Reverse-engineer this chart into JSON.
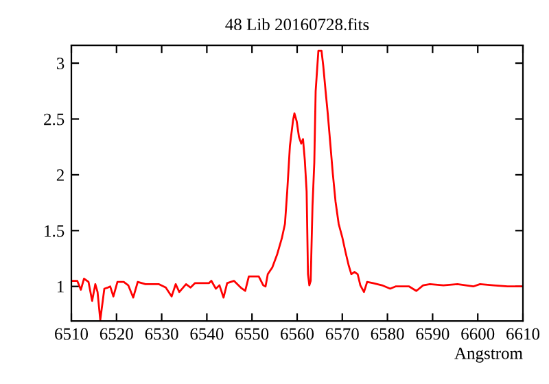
{
  "chart_data": {
    "type": "line",
    "title": "48 Lib 20160728.fits",
    "xlabel": "Angstrom",
    "xlim": [
      6510,
      6610
    ],
    "xticks": [
      6510,
      6520,
      6530,
      6540,
      6550,
      6560,
      6570,
      6580,
      6590,
      6600,
      6610
    ],
    "ylim": [
      0.69,
      3.16
    ],
    "yticks": [
      1,
      1.5,
      2,
      2.5,
      3
    ],
    "grid": false,
    "legend": false,
    "marker": "none",
    "line_style": "solid",
    "series": [
      {
        "color": "#ff0000",
        "x": [
          6510.3,
          6511.3,
          6512.1,
          6512.8,
          6513.8,
          6514.6,
          6515.3,
          6515.8,
          6516.4,
          6517.3,
          6518.1,
          6518.6,
          6519.3,
          6520.2,
          6521.6,
          6522.6,
          6523.7,
          6524.7,
          6526.4,
          6529.4,
          6530.9,
          6532.2,
          6533.1,
          6533.9,
          6535.4,
          6536.4,
          6537.4,
          6540.5,
          6541.0,
          6542.0,
          6542.8,
          6543.7,
          6544.5,
          6546.0,
          6547.5,
          6548.5,
          6549.3,
          6550.0,
          6551.5,
          6552.5,
          6553.0,
          6553.5,
          6554.5,
          6555.6,
          6556.6,
          6557.3,
          6557.8,
          6558.4,
          6559.1,
          6559.4,
          6559.9,
          6560.4,
          6560.9,
          6561.3,
          6561.7,
          6562.1,
          6562.4,
          6562.7,
          6563.0,
          6563.4,
          6563.8,
          6564.1,
          6564.7,
          6565.4,
          6565.8,
          6566.3,
          6566.8,
          6567.3,
          6567.9,
          6568.5,
          6569.2,
          6570.0,
          6570.7,
          6571.4,
          6572.0,
          6572.7,
          6573.4,
          6574.0,
          6574.8,
          6575.5,
          6576.8,
          6578.8,
          6580.6,
          6581.8,
          6583.3,
          6584.8,
          6586.4,
          6587.9,
          6589.4,
          6592.4,
          6595.5,
          6599.0,
          6600.5,
          6603.5,
          6606.6,
          6609.6
        ],
        "values": [
          1.05,
          1.05,
          0.97,
          1.07,
          1.04,
          0.87,
          1.02,
          0.95,
          0.7,
          0.98,
          0.99,
          1.0,
          0.91,
          1.04,
          1.04,
          1.01,
          0.9,
          1.04,
          1.02,
          1.02,
          0.99,
          0.91,
          1.02,
          0.95,
          1.02,
          0.99,
          1.03,
          1.03,
          1.05,
          0.98,
          1.01,
          0.9,
          1.03,
          1.05,
          0.99,
          0.96,
          1.09,
          1.09,
          1.09,
          1.01,
          1.0,
          1.11,
          1.17,
          1.29,
          1.43,
          1.56,
          1.85,
          2.26,
          2.49,
          2.55,
          2.48,
          2.34,
          2.28,
          2.32,
          2.13,
          1.85,
          1.11,
          1.01,
          1.05,
          1.72,
          2.11,
          2.75,
          3.11,
          3.11,
          2.97,
          2.75,
          2.54,
          2.3,
          2.01,
          1.76,
          1.56,
          1.44,
          1.31,
          1.19,
          1.11,
          1.13,
          1.11,
          1.01,
          0.95,
          1.04,
          1.03,
          1.01,
          0.98,
          1.0,
          1.0,
          1.0,
          0.96,
          1.01,
          1.02,
          1.01,
          1.02,
          1.0,
          1.02,
          1.01,
          1.0,
          1.0
        ]
      }
    ]
  }
}
